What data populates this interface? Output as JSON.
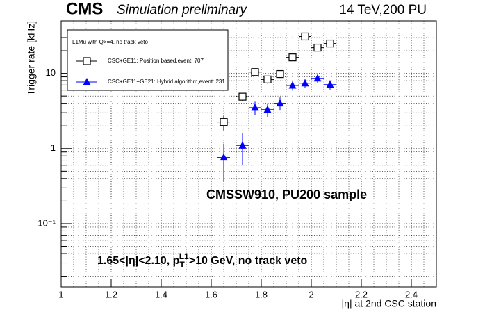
{
  "chart_data": {
    "type": "scatter",
    "title": "CMS",
    "subtitle": "Simulation preliminary",
    "energy_label": "14 TeV,200 PU",
    "x_label": "|η| at 2nd CSC station",
    "y_label": "Trigger rate [kHz]",
    "legend_title": "L1Mu with Q>=4, no track veto",
    "log_y": true,
    "grid": true,
    "xlim": [
      1,
      2.5
    ],
    "ylim": [
      0.0144,
      50
    ],
    "xticks": [
      1,
      1.2,
      1.4,
      1.6,
      1.8,
      2,
      2.2,
      2.4
    ],
    "yticks": [
      {
        "value": 0.1,
        "label": "10⁻¹"
      },
      1,
      10
    ],
    "xerr": 0.025,
    "x": [
      1.65,
      1.725,
      1.775,
      1.825,
      1.875,
      1.925,
      1.975,
      2.025,
      2.075
    ],
    "series": [
      {
        "name": "CSC+GE11: Position based,event: 707",
        "color": "#000000",
        "marker": "open-square",
        "values": [
          2.25,
          4.9,
          10.4,
          8.3,
          9.8,
          16.3,
          31,
          22,
          25
        ],
        "errors": [
          0.5,
          0.6,
          1.2,
          1.0,
          1.1,
          1.5,
          2.0,
          1.8,
          2.0
        ]
      },
      {
        "name": "CSC+GE11+GE21: Hybrid algorithm,event: 231",
        "color": "#0000ff",
        "marker": "triangle",
        "values": [
          0.76,
          1.1,
          3.5,
          3.3,
          4.0,
          6.9,
          7.4,
          8.6,
          7.1
        ],
        "errors": [
          0.4,
          0.5,
          0.7,
          0.7,
          0.8,
          1.0,
          1.0,
          1.1,
          1.0
        ]
      }
    ],
    "annotations": [
      {
        "text": "CMSSW910, PU200 sample",
        "color": "#ff2a00"
      },
      {
        "parts": [
          "1.65<|η|<2.10, p",
          "T",
          "L1",
          ">10 GeV, no track veto"
        ],
        "color": "#000000"
      }
    ]
  }
}
